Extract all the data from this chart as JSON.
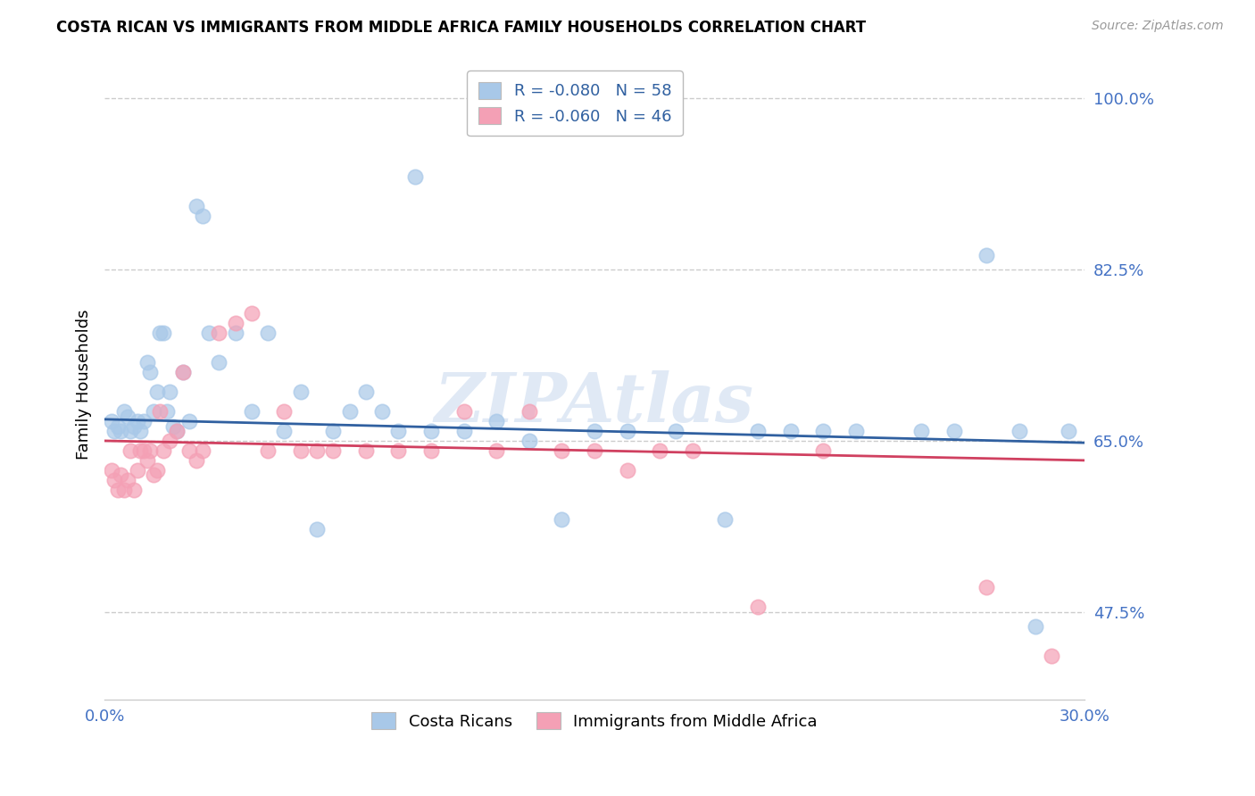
{
  "title": "COSTA RICAN VS IMMIGRANTS FROM MIDDLE AFRICA FAMILY HOUSEHOLDS CORRELATION CHART",
  "source": "Source: ZipAtlas.com",
  "ylabel": "Family Households",
  "legend_bottom": [
    "Costa Ricans",
    "Immigrants from Middle Africa"
  ],
  "legend_r_blue": "R = -0.080",
  "legend_n_blue": "N = 58",
  "legend_r_pink": "R = -0.060",
  "legend_n_pink": "N = 46",
  "xlim": [
    0.0,
    0.3
  ],
  "ylim": [
    0.385,
    1.03
  ],
  "yticks": [
    0.475,
    0.65,
    0.825,
    1.0
  ],
  "ytick_labels": [
    "47.5%",
    "65.0%",
    "82.5%",
    "100.0%"
  ],
  "xticks": [
    0.0,
    0.05,
    0.1,
    0.15,
    0.2,
    0.25,
    0.3
  ],
  "xtick_labels": [
    "0.0%",
    "",
    "",
    "",
    "",
    "",
    "30.0%"
  ],
  "blue_color": "#a8c8e8",
  "pink_color": "#f4a0b5",
  "blue_line_color": "#3060a0",
  "pink_line_color": "#d04060",
  "axis_label_color": "#4472c4",
  "blue_x": [
    0.002,
    0.003,
    0.004,
    0.005,
    0.006,
    0.007,
    0.008,
    0.009,
    0.01,
    0.011,
    0.012,
    0.013,
    0.014,
    0.015,
    0.016,
    0.017,
    0.018,
    0.019,
    0.02,
    0.021,
    0.022,
    0.024,
    0.026,
    0.028,
    0.03,
    0.032,
    0.035,
    0.04,
    0.045,
    0.05,
    0.055,
    0.06,
    0.065,
    0.07,
    0.075,
    0.08,
    0.085,
    0.09,
    0.095,
    0.1,
    0.11,
    0.12,
    0.13,
    0.14,
    0.15,
    0.16,
    0.175,
    0.19,
    0.2,
    0.21,
    0.22,
    0.23,
    0.25,
    0.26,
    0.27,
    0.28,
    0.285,
    0.295
  ],
  "blue_y": [
    0.67,
    0.66,
    0.665,
    0.66,
    0.68,
    0.675,
    0.66,
    0.665,
    0.67,
    0.66,
    0.67,
    0.73,
    0.72,
    0.68,
    0.7,
    0.76,
    0.76,
    0.68,
    0.7,
    0.665,
    0.66,
    0.72,
    0.67,
    0.89,
    0.88,
    0.76,
    0.73,
    0.76,
    0.68,
    0.76,
    0.66,
    0.7,
    0.56,
    0.66,
    0.68,
    0.7,
    0.68,
    0.66,
    0.92,
    0.66,
    0.66,
    0.67,
    0.65,
    0.57,
    0.66,
    0.66,
    0.66,
    0.57,
    0.66,
    0.66,
    0.66,
    0.66,
    0.66,
    0.66,
    0.84,
    0.66,
    0.46,
    0.66
  ],
  "pink_x": [
    0.002,
    0.003,
    0.004,
    0.005,
    0.006,
    0.007,
    0.008,
    0.009,
    0.01,
    0.011,
    0.012,
    0.013,
    0.014,
    0.015,
    0.016,
    0.017,
    0.018,
    0.02,
    0.022,
    0.024,
    0.026,
    0.028,
    0.03,
    0.035,
    0.04,
    0.045,
    0.05,
    0.055,
    0.06,
    0.065,
    0.07,
    0.08,
    0.09,
    0.1,
    0.11,
    0.12,
    0.13,
    0.14,
    0.15,
    0.16,
    0.17,
    0.18,
    0.2,
    0.22,
    0.27,
    0.29
  ],
  "pink_y": [
    0.62,
    0.61,
    0.6,
    0.615,
    0.6,
    0.61,
    0.64,
    0.6,
    0.62,
    0.64,
    0.64,
    0.63,
    0.64,
    0.615,
    0.62,
    0.68,
    0.64,
    0.65,
    0.66,
    0.72,
    0.64,
    0.63,
    0.64,
    0.76,
    0.77,
    0.78,
    0.64,
    0.68,
    0.64,
    0.64,
    0.64,
    0.64,
    0.64,
    0.64,
    0.68,
    0.64,
    0.68,
    0.64,
    0.64,
    0.62,
    0.64,
    0.64,
    0.48,
    0.64,
    0.5,
    0.43
  ],
  "blue_trend_x": [
    0.0,
    0.3
  ],
  "blue_trend_y": [
    0.672,
    0.648
  ],
  "pink_trend_x": [
    0.0,
    0.3
  ],
  "pink_trend_y": [
    0.65,
    0.63
  ],
  "watermark": "ZIPAtlas",
  "fig_bg": "#ffffff",
  "grid_color": "#cccccc",
  "grid_style": "--"
}
